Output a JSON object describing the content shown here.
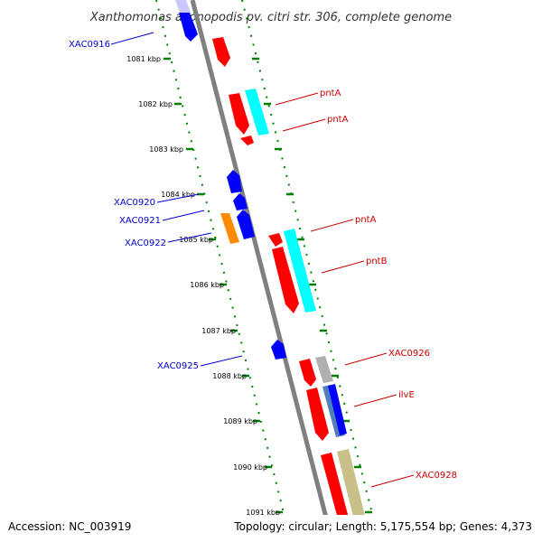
{
  "title": "Xanthomonas axonopodis pv. citri str. 306, complete genome",
  "footer": {
    "accession": "Accession: NC_003919",
    "stats": "Topology: circular; Length: 5,175,554 bp; Genes: 4,373"
  },
  "colors": {
    "backbone": "#808080",
    "ticks": "#008000",
    "forward_gene": "#ff0000",
    "reverse_gene": "#0000ff",
    "cds_cyan": "#00ffff",
    "cds_gray": "#b0b0b0",
    "cds_steel": "#4f7fbf",
    "cds_khaki": "#c8c088",
    "cds_orange": "#ff8c00",
    "label_forward": "#cc0000",
    "label_reverse": "#0000cc"
  },
  "kbp_labels": [
    "1081 kbp",
    "1082 kbp",
    "1083 kbp",
    "1084 kbp",
    "1085 kbp",
    "1086 kbp",
    "1087 kbp",
    "1088 kbp",
    "1089 kbp",
    "1090 kbp",
    "1091 kbp"
  ],
  "reverse_labels": [
    "XAC0916",
    "XAC0920",
    "XAC0921",
    "XAC0922",
    "XAC0925"
  ],
  "forward_labels": [
    "pntA",
    "pntA",
    "pntA",
    "pntB",
    "XAC0926",
    "ilvE",
    "XAC0928"
  ]
}
